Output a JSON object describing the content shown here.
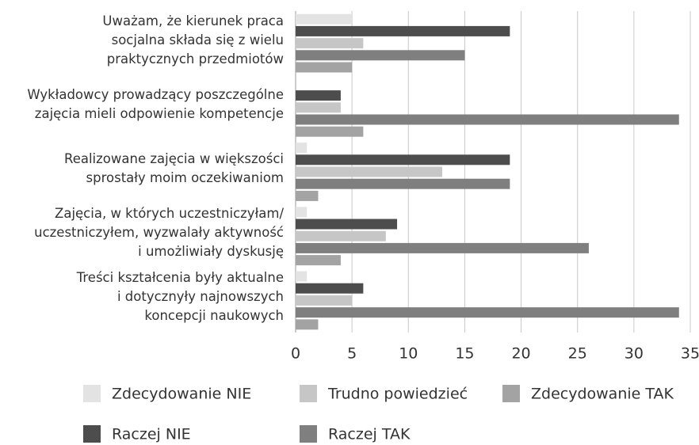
{
  "chart_data": {
    "type": "bar",
    "orientation": "horizontal",
    "categories": [
      "Uważam, że kierunek praca\nsocjalna składa się z wielu\npraktycznych przedmiotów",
      "Wykładowcy prowadzący poszczególne\nzajęcia mieli odpowienie kompetencje",
      "Realizowane zajęcia w większości\nsprostały moim oczekiwaniom",
      "Zajęcia, w których uczestniczyłam/\nuczestniczyłem, wyzwalały aktywność\ni umożliwiały dyskusję",
      "Treści kształcenia były aktualne\ni dotyczny​ły najnowszych\nkoncepcji naukowych"
    ],
    "series": [
      {
        "name": "Zdecydowanie NIE",
        "color": "#e3e3e3",
        "values": [
          5,
          0,
          1,
          1,
          1
        ]
      },
      {
        "name": "Raczej NIE",
        "color": "#4d4d4d",
        "values": [
          19,
          4,
          19,
          9,
          6
        ]
      },
      {
        "name": "Trudno powiedzieć",
        "color": "#c6c6c6",
        "values": [
          6,
          4,
          13,
          8,
          5
        ]
      },
      {
        "name": "Raczej TAK",
        "color": "#7f7f7f",
        "values": [
          15,
          34,
          19,
          26,
          34
        ]
      },
      {
        "name": "Zdecydowanie TAK",
        "color": "#a3a3a3",
        "values": [
          5,
          6,
          2,
          4,
          2
        ]
      }
    ],
    "xlim": [
      0,
      35
    ],
    "xticks": [
      0,
      5,
      10,
      15,
      20,
      25,
      30,
      35
    ],
    "grid": true
  }
}
